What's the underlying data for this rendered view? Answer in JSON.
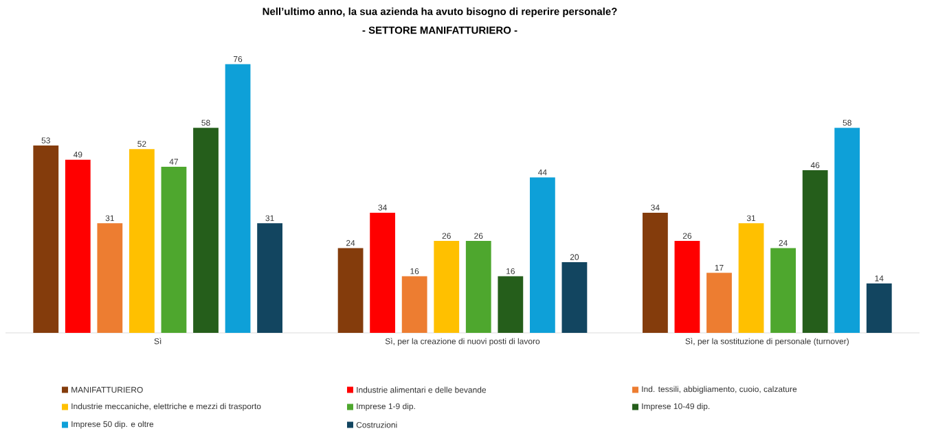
{
  "chart_data": {
    "type": "bar",
    "title": "Nell’ultimo anno, la sua azienda ha avuto bisogno di reperire personale?",
    "subtitle": "- SETTORE MANIFATTURIERO -",
    "categories": [
      "Sì",
      "Sì, per la creazione di nuovi posti di lavoro",
      "Sì, per la sostituzione di personale (turnover)"
    ],
    "series": [
      {
        "name": "MANIFATTURIERO",
        "color": "#843c0c",
        "values": [
          53,
          24,
          34
        ]
      },
      {
        "name": "Industrie alimentari e delle bevande",
        "color": "#ff0000",
        "values": [
          49,
          34,
          26
        ]
      },
      {
        "name": "Ind. tessili, abbigliamento, cuoio, calzature",
        "color": "#ed7d31",
        "values": [
          31,
          16,
          17
        ]
      },
      {
        "name": "Industrie meccaniche, elettriche e mezzi di trasporto",
        "color": "#ffc000",
        "values": [
          52,
          26,
          31
        ]
      },
      {
        "name": "Imprese 1-9 dip.",
        "color": "#4ea72e",
        "values": [
          47,
          26,
          24
        ]
      },
      {
        "name": "Imprese 10-49 dip.",
        "color": "#255e1b",
        "values": [
          58,
          16,
          46
        ]
      },
      {
        "name": "Imprese 50 dip. e oltre",
        "color": "#0ea0d8",
        "values": [
          76,
          44,
          58
        ]
      },
      {
        "name": "Costruzioni",
        "color": "#124560",
        "values": [
          31,
          20,
          14
        ]
      }
    ],
    "data_labels": true,
    "legend": "bottom"
  }
}
